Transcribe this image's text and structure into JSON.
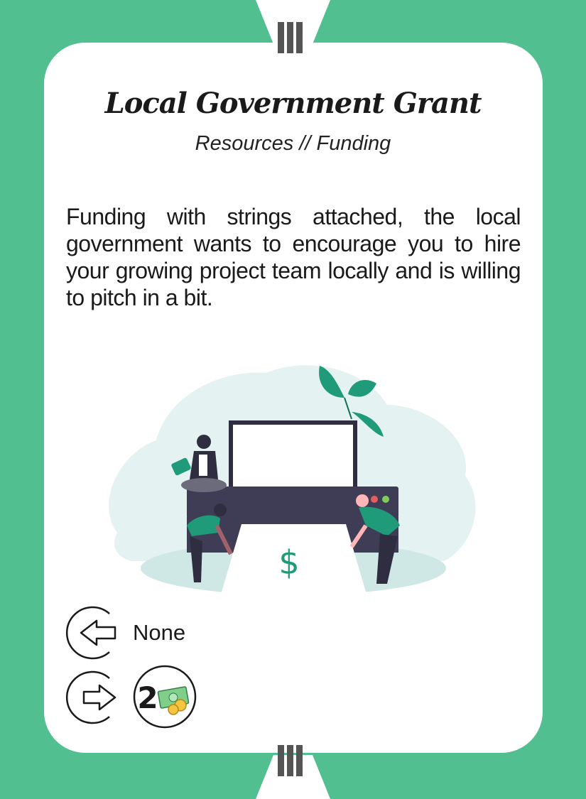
{
  "card": {
    "title": "Local Government Grant",
    "subtitle": "Resources // Funding",
    "description": "Funding with strings attached, the local government wants to encourage you to hire your growing project team locally and is willing to pitch in a bit."
  },
  "illustration": {
    "symbol": "$",
    "name": "team-moving-printer-illustration"
  },
  "requirements": {
    "input_icon": "arrow-left-icon",
    "input_label": "None",
    "output_icon": "arrow-right-icon",
    "output_amount": "2",
    "output_resource_icon": "money-icon"
  },
  "colors": {
    "background": "#52bf91",
    "card": "#ffffff",
    "accent": "#1f9b7a",
    "marker": "#555555"
  }
}
